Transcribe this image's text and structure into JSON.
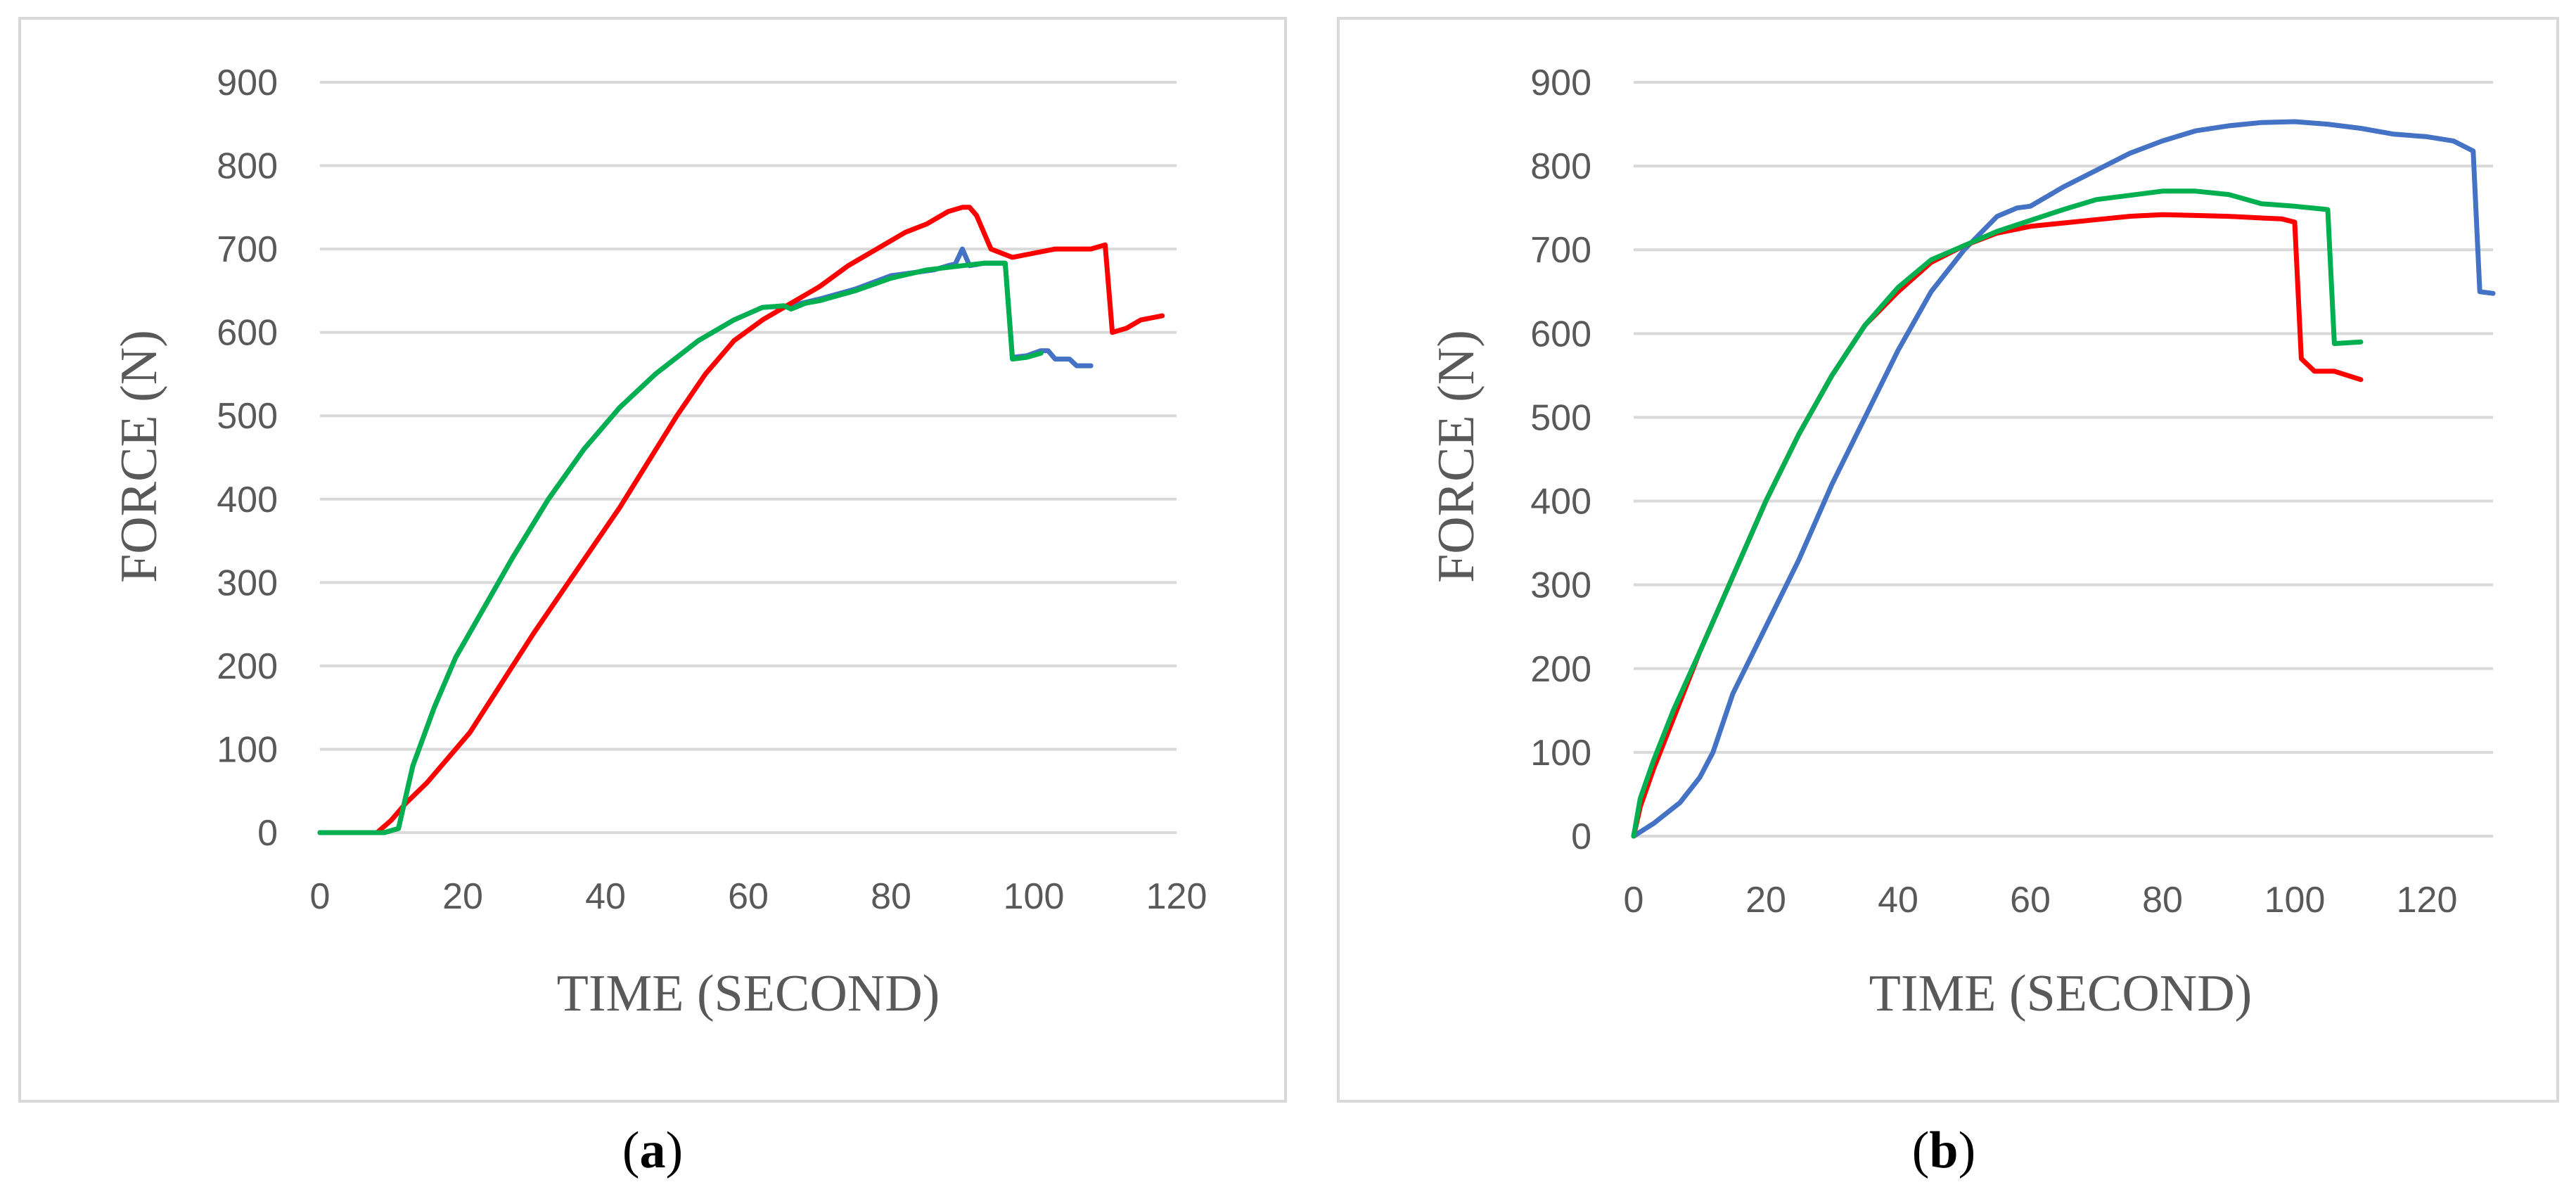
{
  "figure": {
    "panel_labels": [
      "a",
      "b"
    ]
  },
  "chart_data": [
    {
      "type": "line",
      "panel": "a",
      "xlabel": "TIME (SECOND)",
      "ylabel": "FORCE (N)",
      "xlim": [
        0,
        120
      ],
      "ylim": [
        0,
        900
      ],
      "xticks": [
        0,
        20,
        40,
        60,
        80,
        100,
        120
      ],
      "yticks": [
        0,
        100,
        200,
        300,
        400,
        500,
        600,
        700,
        800,
        900
      ],
      "grid": "horizontal",
      "legend": "none",
      "series": [
        {
          "color": "#4472C4",
          "points": [
            [
              0,
              0
            ],
            [
              9,
              0
            ],
            [
              11,
              5
            ],
            [
              13,
              80
            ],
            [
              16,
              150
            ],
            [
              19,
              210
            ],
            [
              23,
              270
            ],
            [
              27,
              330
            ],
            [
              32,
              400
            ],
            [
              37,
              460
            ],
            [
              42,
              510
            ],
            [
              47,
              550
            ],
            [
              53,
              590
            ],
            [
              58,
              615
            ],
            [
              62,
              630
            ],
            [
              66,
              632
            ],
            [
              70,
              640
            ],
            [
              75,
              652
            ],
            [
              80,
              668
            ],
            [
              86,
              675
            ],
            [
              88,
              680
            ],
            [
              89,
              682
            ],
            [
              90,
              700
            ],
            [
              91,
              680
            ],
            [
              93,
              683
            ],
            [
              95,
              683
            ],
            [
              96,
              683
            ],
            [
              97,
              570
            ],
            [
              99,
              572
            ],
            [
              101,
              578
            ],
            [
              102,
              578
            ],
            [
              103,
              568
            ],
            [
              105,
              568
            ],
            [
              106,
              560
            ],
            [
              108,
              560
            ]
          ]
        },
        {
          "color": "#FF0000",
          "points": [
            [
              0,
              0
            ],
            [
              8,
              0
            ],
            [
              10,
              15
            ],
            [
              12,
              35
            ],
            [
              15,
              60
            ],
            [
              18,
              90
            ],
            [
              21,
              120
            ],
            [
              24,
              160
            ],
            [
              27,
              200
            ],
            [
              30,
              240
            ],
            [
              34,
              290
            ],
            [
              38,
              340
            ],
            [
              42,
              390
            ],
            [
              46,
              445
            ],
            [
              50,
              500
            ],
            [
              54,
              550
            ],
            [
              58,
              590
            ],
            [
              62,
              615
            ],
            [
              66,
              635
            ],
            [
              70,
              655
            ],
            [
              74,
              680
            ],
            [
              78,
              700
            ],
            [
              82,
              720
            ],
            [
              85,
              730
            ],
            [
              88,
              745
            ],
            [
              90,
              750
            ],
            [
              91,
              750
            ],
            [
              92,
              740
            ],
            [
              94,
              700
            ],
            [
              97,
              690
            ],
            [
              100,
              695
            ],
            [
              103,
              700
            ],
            [
              106,
              700
            ],
            [
              108,
              700
            ],
            [
              110,
              705
            ],
            [
              111,
              600
            ],
            [
              113,
              605
            ],
            [
              115,
              615
            ],
            [
              118,
              620
            ]
          ]
        },
        {
          "color": "#00B050",
          "points": [
            [
              0,
              0
            ],
            [
              9,
              0
            ],
            [
              11,
              5
            ],
            [
              13,
              80
            ],
            [
              16,
              150
            ],
            [
              19,
              210
            ],
            [
              23,
              270
            ],
            [
              27,
              330
            ],
            [
              32,
              400
            ],
            [
              37,
              460
            ],
            [
              42,
              510
            ],
            [
              47,
              550
            ],
            [
              53,
              590
            ],
            [
              58,
              615
            ],
            [
              62,
              630
            ],
            [
              65,
              632
            ],
            [
              66,
              628
            ],
            [
              68,
              635
            ],
            [
              70,
              638
            ],
            [
              75,
              650
            ],
            [
              80,
              665
            ],
            [
              85,
              675
            ],
            [
              90,
              680
            ],
            [
              93,
              683
            ],
            [
              95,
              683
            ],
            [
              96,
              683
            ],
            [
              97,
              568
            ],
            [
              99,
              570
            ],
            [
              101,
              575
            ]
          ]
        }
      ]
    },
    {
      "type": "line",
      "panel": "b",
      "xlabel": "TIME (SECOND)",
      "ylabel": "FORCE (N)",
      "xlim": [
        0,
        130
      ],
      "ylim": [
        0,
        900
      ],
      "xticks": [
        0,
        20,
        40,
        60,
        80,
        100,
        120
      ],
      "yticks": [
        0,
        100,
        200,
        300,
        400,
        500,
        600,
        700,
        800,
        900
      ],
      "grid": "horizontal",
      "legend": "none",
      "series": [
        {
          "color": "#4472C4",
          "points": [
            [
              0,
              0
            ],
            [
              3,
              15
            ],
            [
              7,
              40
            ],
            [
              10,
              70
            ],
            [
              12,
              100
            ],
            [
              15,
              170
            ],
            [
              20,
              250
            ],
            [
              25,
              330
            ],
            [
              30,
              420
            ],
            [
              35,
              500
            ],
            [
              40,
              580
            ],
            [
              45,
              650
            ],
            [
              50,
              700
            ],
            [
              55,
              740
            ],
            [
              58,
              750
            ],
            [
              60,
              752
            ],
            [
              65,
              775
            ],
            [
              70,
              795
            ],
            [
              75,
              815
            ],
            [
              80,
              830
            ],
            [
              85,
              842
            ],
            [
              90,
              848
            ],
            [
              95,
              852
            ],
            [
              100,
              853
            ],
            [
              105,
              850
            ],
            [
              110,
              845
            ],
            [
              115,
              838
            ],
            [
              120,
              835
            ],
            [
              124,
              830
            ],
            [
              127,
              818
            ],
            [
              128,
              650
            ],
            [
              130,
              648
            ]
          ]
        },
        {
          "color": "#FF0000",
          "points": [
            [
              0,
              0
            ],
            [
              1,
              35
            ],
            [
              3,
              80
            ],
            [
              6,
              140
            ],
            [
              10,
              220
            ],
            [
              15,
              310
            ],
            [
              20,
              400
            ],
            [
              25,
              480
            ],
            [
              30,
              550
            ],
            [
              35,
              610
            ],
            [
              40,
              650
            ],
            [
              45,
              685
            ],
            [
              50,
              705
            ],
            [
              55,
              720
            ],
            [
              60,
              728
            ],
            [
              65,
              732
            ],
            [
              70,
              736
            ],
            [
              75,
              740
            ],
            [
              80,
              742
            ],
            [
              85,
              741
            ],
            [
              90,
              740
            ],
            [
              95,
              738
            ],
            [
              98,
              737
            ],
            [
              100,
              733
            ],
            [
              101,
              570
            ],
            [
              103,
              555
            ],
            [
              106,
              555
            ],
            [
              110,
              545
            ]
          ]
        },
        {
          "color": "#00B050",
          "points": [
            [
              0,
              0
            ],
            [
              1,
              45
            ],
            [
              3,
              90
            ],
            [
              6,
              150
            ],
            [
              10,
              220
            ],
            [
              15,
              310
            ],
            [
              20,
              400
            ],
            [
              25,
              480
            ],
            [
              30,
              550
            ],
            [
              35,
              610
            ],
            [
              40,
              655
            ],
            [
              45,
              688
            ],
            [
              50,
              705
            ],
            [
              55,
              722
            ],
            [
              60,
              735
            ],
            [
              65,
              748
            ],
            [
              70,
              760
            ],
            [
              75,
              765
            ],
            [
              80,
              770
            ],
            [
              85,
              770
            ],
            [
              90,
              766
            ],
            [
              95,
              755
            ],
            [
              100,
              752
            ],
            [
              105,
              748
            ],
            [
              106,
              588
            ],
            [
              110,
              590
            ]
          ]
        }
      ]
    }
  ]
}
